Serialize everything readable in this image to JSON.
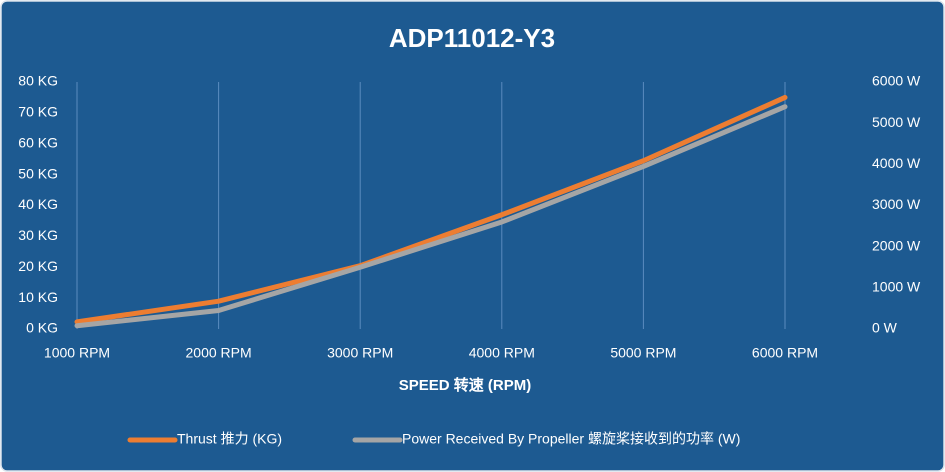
{
  "chart_data": {
    "type": "line",
    "title": "ADP11012-Y3",
    "x_label": "SPEED 转速 (RPM)",
    "categories": [
      "1000 RPM",
      "2000 RPM",
      "3000 RPM",
      "4000 RPM",
      "5000 RPM",
      "6000 RPM"
    ],
    "series": [
      {
        "name": "Thrust 推力 (KG)",
        "color": "#ed7d31",
        "values": [
          2.3,
          9,
          20.5,
          37,
          54.5,
          75
        ]
      },
      {
        "name": "Power Received By Propeller 螺旋桨接收到的功率 (W)",
        "color": "#a5a5a5",
        "axis": "y2",
        "values": [
          80,
          450,
          1500,
          2600,
          3950,
          5400
        ]
      }
    ],
    "ylim": [
      0,
      80
    ],
    "yticks": [
      {
        "value": 0,
        "label": "0 KG"
      },
      {
        "value": 10,
        "label": "10 KG"
      },
      {
        "value": 20,
        "label": "20 KG"
      },
      {
        "value": 30,
        "label": "30 KG"
      },
      {
        "value": 40,
        "label": "40 KG"
      },
      {
        "value": 50,
        "label": "50 KG"
      },
      {
        "value": 60,
        "label": "60 KG"
      },
      {
        "value": 70,
        "label": "70 KG"
      },
      {
        "value": 80,
        "label": "80 KG"
      }
    ],
    "y2lim": [
      0,
      6000
    ],
    "y2ticks": [
      {
        "value": 0,
        "label": "0 W"
      },
      {
        "value": 1000,
        "label": "1000 W"
      },
      {
        "value": 2000,
        "label": "2000 W"
      },
      {
        "value": 3000,
        "label": "3000 W"
      },
      {
        "value": 4000,
        "label": "4000 W"
      },
      {
        "value": 5000,
        "label": "5000 W"
      },
      {
        "value": 6000,
        "label": "6000 W"
      }
    ],
    "grid": true
  }
}
